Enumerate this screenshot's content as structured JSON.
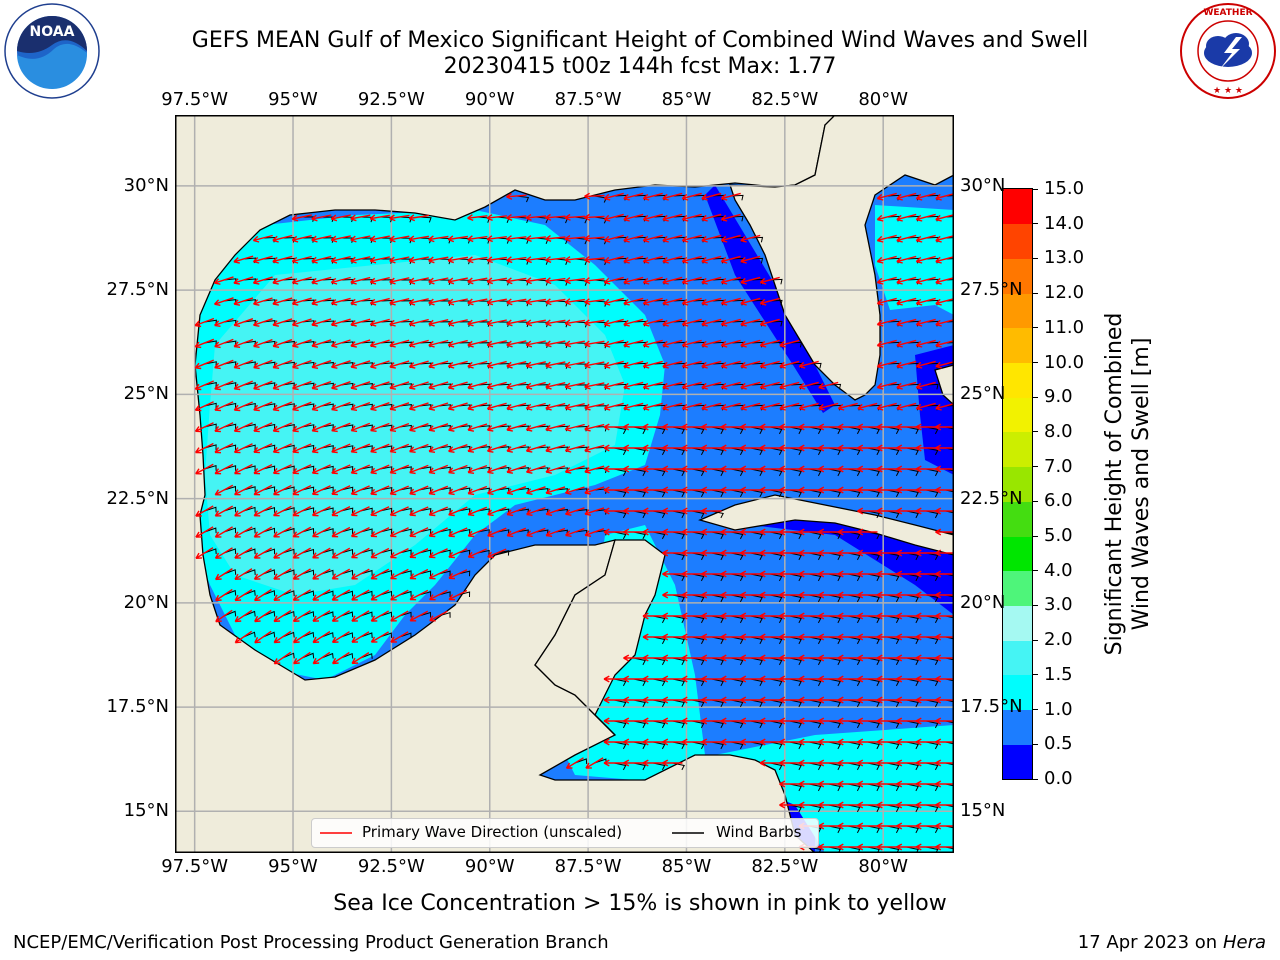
{
  "title": {
    "line1": "GEFS MEAN Gulf of Mexico Significant Height of Combined Wind Waves and Swell",
    "line2": "20230415 t00z 144h fcst   Max: 1.77"
  },
  "logos": {
    "noaa": {
      "text": "NOAA",
      "ring_text": "NATIONAL OCEANIC AND ATMOSPHERIC ADMINISTRATION · U.S. DEPARTMENT OF COMMERCE",
      "icon": "noaa-logo"
    },
    "nws": {
      "ring_text": "NATIONAL WEATHER SERVICE",
      "icon": "nws-logo"
    }
  },
  "map": {
    "lon_ticks": [
      "97.5°W",
      "95°W",
      "92.5°W",
      "90°W",
      "87.5°W",
      "85°W",
      "82.5°W",
      "80°W"
    ],
    "lon_values": [
      -97.5,
      -95,
      -92.5,
      -90,
      -87.5,
      -85,
      -82.5,
      -80
    ],
    "lat_ticks": [
      "30°N",
      "27.5°N",
      "25°N",
      "22.5°N",
      "20°N",
      "17.5°N",
      "15°N"
    ],
    "lat_values": [
      30,
      27.5,
      25,
      22.5,
      20,
      17.5,
      15
    ],
    "lon_range": [
      -98,
      -78.2
    ],
    "lat_range": [
      14,
      31.7
    ],
    "colors": {
      "land": "#efecdb",
      "ocean_base": "#1c7dff",
      "wave_arrow": "#ff0000",
      "wind_barb": "#000000",
      "grid": "#b0b0b0"
    },
    "legend": {
      "wave_label": "Primary Wave Direction (unscaled)",
      "wind_label": "Wind Barbs"
    }
  },
  "colorbar": {
    "label_line1": "Significant Height of Combined",
    "label_line2": "Wind Waves and Swell [m]",
    "tick_labels": [
      "0.0",
      "0.5",
      "1.0",
      "1.5",
      "2.0",
      "3.0",
      "4.0",
      "5.0",
      "6.0",
      "7.0",
      "8.0",
      "9.0",
      "10.0",
      "11.0",
      "12.0",
      "13.0",
      "14.0",
      "15.0"
    ],
    "colors": [
      "#0000ff",
      "#1c7dff",
      "#00fdfd",
      "#45f4f4",
      "#a5f9f2",
      "#4ef57a",
      "#00e600",
      "#44dd11",
      "#99e600",
      "#ccee00",
      "#f2f200",
      "#ffe600",
      "#ffbb00",
      "#ff9900",
      "#ff7700",
      "#ff4400",
      "#ff0000"
    ]
  },
  "chart_data": {
    "type": "heatmap",
    "variable": "Significant Height of Combined Wind Waves and Swell",
    "units": "m",
    "max_value": 1.77,
    "color_levels": [
      0.0,
      0.5,
      1.0,
      1.5,
      2.0,
      3.0,
      4.0,
      5.0,
      6.0,
      7.0,
      8.0,
      9.0,
      10.0,
      11.0,
      12.0,
      13.0,
      14.0,
      15.0
    ]
  },
  "footer": {
    "note": "Sea Ice Concentration > 15% is shown in pink to yellow",
    "left": "NCEP/EMC/Verification Post Processing Product Generation Branch",
    "right_date": "17 Apr 2023 on ",
    "right_host": "Hera"
  }
}
